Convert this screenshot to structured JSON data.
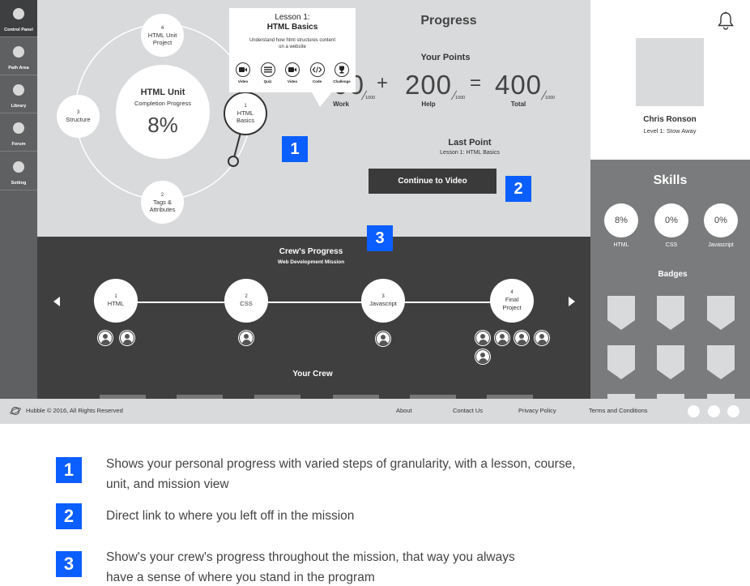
{
  "sidebar": {
    "items": [
      {
        "label": "Control Panel",
        "active": true
      },
      {
        "label": "Path Area"
      },
      {
        "label": "Library"
      },
      {
        "label": "Forum"
      },
      {
        "label": "Setting"
      }
    ]
  },
  "progress_ring": {
    "center": {
      "title": "HTML Unit",
      "subtitle": "Completion Progress",
      "percent": "8%"
    },
    "nodes": [
      {
        "num": "4",
        "name": "HTML Unit Project"
      },
      {
        "num": "3",
        "name": "Structure"
      },
      {
        "num": "2",
        "name": "Tags & Attributes"
      },
      {
        "num": "1",
        "name": "HTML Basics"
      }
    ]
  },
  "tooltip": {
    "title": "Lesson 1:",
    "subtitle": "HTML Basics",
    "description": "Understand how html structures content on a website",
    "steps": [
      {
        "icon": "video-icon",
        "label": "Video"
      },
      {
        "icon": "quiz-icon",
        "label": "Quiz"
      },
      {
        "icon": "video-icon",
        "label": "Video"
      },
      {
        "icon": "code-icon",
        "label": "Code"
      },
      {
        "icon": "trophy-icon",
        "label": "Challenge"
      }
    ]
  },
  "progress": {
    "title": "Progress",
    "points_title": "Your Points",
    "work": {
      "value": "200",
      "denominator": "1000",
      "label": "Work"
    },
    "help": {
      "value": "200",
      "denominator": "1000",
      "label": "Help"
    },
    "total": {
      "value": "400",
      "denominator": "1000",
      "label": "Total"
    },
    "plus": "+",
    "equals": "=",
    "last_point_title": "Last Point",
    "last_point_value": "Lesson 1: HTML Basics",
    "continue_label": "Continue to Video"
  },
  "markers": [
    "1",
    "2",
    "3"
  ],
  "crew": {
    "title": "Crew's Progress",
    "subtitle": "Web Development Mission",
    "nodes": [
      {
        "num": "1",
        "name": "HTML",
        "members": 2
      },
      {
        "num": "2",
        "name": "CSS",
        "members": 1
      },
      {
        "num": "3",
        "name": "Javascript",
        "members": 1
      },
      {
        "num": "4",
        "name": "Final Project",
        "members": 5
      }
    ],
    "your_crew_title": "Your Crew"
  },
  "profile": {
    "name": "Chris Ronson",
    "level": "Level 1: Stow Away"
  },
  "skills": {
    "title": "Skills",
    "items": [
      {
        "percent": "8%",
        "label": "HTML"
      },
      {
        "percent": "0%",
        "label": "CSS"
      },
      {
        "percent": "0%",
        "label": "Javascript"
      }
    ],
    "badges_title": "Badges"
  },
  "footer": {
    "copyright": "Hubble © 2016, All Rights Reserved",
    "links": [
      "About",
      "Contact Us",
      "Privacy Policy",
      "Terms and Conditions"
    ]
  },
  "legend": [
    {
      "num": "1",
      "text": "Shows your personal progress with varied steps of granularity, with a lesson, course, unit, and mission view"
    },
    {
      "num": "2",
      "text": "Direct link to where you left off in the mission"
    },
    {
      "num": "3",
      "text": "Show's your crew's progress throughout the mission, that way you always have a sense of where you stand in the program"
    }
  ],
  "colors": {
    "accent_marker": "#0b5eff",
    "panel_light": "#d9dadb",
    "panel_dark": "#3f3f3f",
    "sidebar": "#5e6062"
  }
}
